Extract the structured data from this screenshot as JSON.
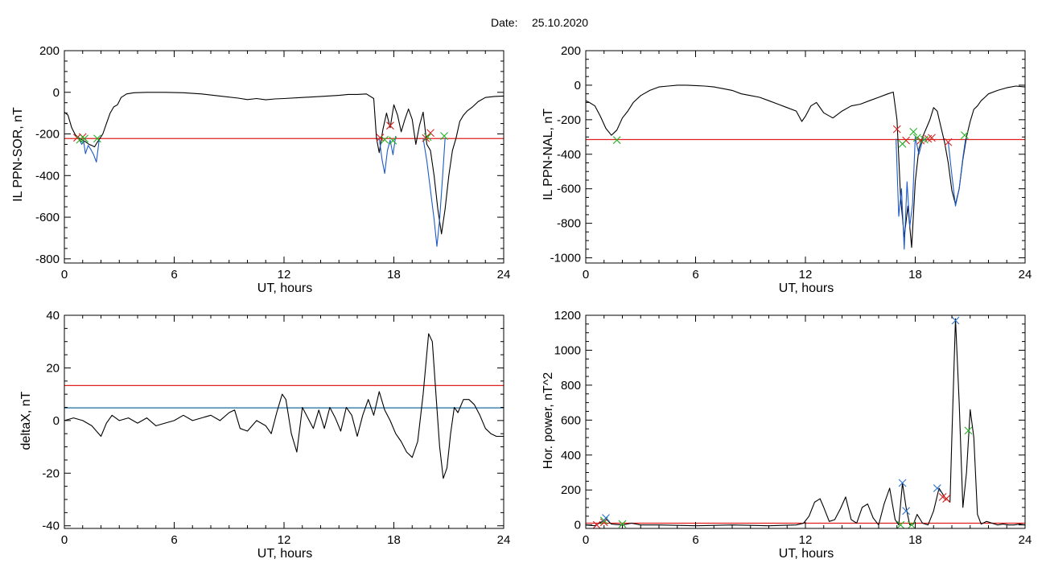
{
  "figure": {
    "date_label": "Date:",
    "date_value": "25.10.2020"
  },
  "chart_data": [
    {
      "id": "p1",
      "type": "line",
      "xlabel": "UT, hours",
      "ylabel": "IL PPN-SOR, nT",
      "xlim": [
        0,
        24
      ],
      "ylim": [
        -820,
        200
      ],
      "x_ticks": [
        0,
        6,
        12,
        18,
        24
      ],
      "y_ticks": [
        200,
        0,
        -200,
        -400,
        -600,
        -800
      ],
      "threshold_lines": [
        {
          "y": -222,
          "color": "#e0201e"
        }
      ],
      "series": [
        {
          "color": "#000000",
          "x": [
            0,
            0.2,
            0.4,
            0.6,
            0.8,
            1.0,
            1.2,
            1.35,
            1.5,
            1.65,
            1.8,
            1.95,
            2.1,
            2.3,
            2.5,
            2.7,
            2.9,
            3.1,
            3.4,
            3.8,
            4.5,
            5.5,
            6.5,
            7.5,
            8.5,
            9.5,
            10.0,
            10.5,
            11.0,
            11.5,
            12.0,
            13.0,
            14.0,
            15.0,
            15.5,
            16.0,
            16.5,
            16.9,
            17.05,
            17.2,
            17.4,
            17.6,
            17.8,
            18.0,
            18.2,
            18.4,
            18.6,
            18.8,
            19.0,
            19.2,
            19.4,
            19.6,
            19.8,
            20.0,
            20.2,
            20.4,
            20.6,
            20.8,
            21.0,
            21.2,
            21.4,
            21.6,
            21.8,
            22.0,
            22.3,
            22.6,
            23.0,
            23.5,
            24
          ],
          "y": [
            -95,
            -110,
            -170,
            -205,
            -220,
            -230,
            -240,
            -250,
            -255,
            -262,
            -240,
            -220,
            -200,
            -150,
            -100,
            -70,
            -60,
            -25,
            -8,
            -2,
            0,
            0,
            -2,
            -8,
            -18,
            -28,
            -35,
            -30,
            -36,
            -32,
            -30,
            -25,
            -20,
            -15,
            -10,
            -10,
            -8,
            -30,
            -220,
            -290,
            -180,
            -100,
            -170,
            -60,
            -110,
            -190,
            -130,
            -80,
            -130,
            -250,
            -160,
            -95,
            -250,
            -280,
            -400,
            -560,
            -680,
            -560,
            -400,
            -280,
            -220,
            -140,
            -110,
            -90,
            -70,
            -45,
            -25,
            -20,
            -18
          ]
        },
        {
          "color": "#1e5ac8",
          "x": [
            0.8,
            0.95,
            1.05,
            1.15,
            1.3,
            1.45,
            1.6,
            1.75,
            1.9
          ],
          "y": [
            -225,
            -250,
            -235,
            -295,
            -255,
            -275,
            -300,
            -335,
            -230
          ]
        },
        {
          "color": "#1e5ac8",
          "x": [
            17.2,
            17.35,
            17.5,
            17.65,
            17.8,
            17.95,
            18.1
          ],
          "y": [
            -220,
            -320,
            -390,
            -280,
            -230,
            -300,
            -210
          ]
        },
        {
          "color": "#1e5ac8",
          "x": [
            19.6,
            19.8,
            20.0,
            20.2,
            20.35,
            20.5,
            20.65,
            20.8
          ],
          "y": [
            -220,
            -330,
            -470,
            -610,
            -740,
            -610,
            -420,
            -220
          ]
        }
      ],
      "markers_red": {
        "x": [
          0.7,
          1.0,
          17.25,
          17.8,
          19.75,
          20.0
        ],
        "y": [
          -218,
          -215,
          -218,
          -160,
          -220,
          -195
        ]
      },
      "markers_green": {
        "x": [
          0.85,
          1.1,
          1.8,
          17.5,
          17.95,
          19.85,
          20.75
        ],
        "y": [
          -228,
          -222,
          -222,
          -228,
          -232,
          -215,
          -210
        ]
      }
    },
    {
      "id": "p2",
      "type": "line",
      "xlabel": "UT, hours",
      "ylabel": "IL PPN-NAL, nT",
      "xlim": [
        0,
        24
      ],
      "ylim": [
        -1030,
        200
      ],
      "x_ticks": [
        0,
        6,
        12,
        18,
        24
      ],
      "y_ticks": [
        200,
        0,
        -200,
        -400,
        -600,
        -800,
        -1000
      ],
      "threshold_lines": [
        {
          "y": -315,
          "color": "#e0201e"
        }
      ],
      "series": [
        {
          "color": "#000000",
          "x": [
            0,
            0.2,
            0.5,
            0.8,
            1.1,
            1.4,
            1.7,
            2.0,
            2.3,
            2.6,
            3.0,
            3.5,
            4.0,
            4.5,
            5.0,
            5.5,
            6.0,
            6.5,
            7.0,
            7.5,
            8.0,
            8.5,
            9.0,
            9.5,
            10.0,
            10.5,
            11.0,
            11.5,
            11.8,
            12.0,
            12.3,
            12.6,
            13.0,
            13.5,
            14.0,
            14.5,
            15.0,
            15.5,
            16.0,
            16.5,
            16.8,
            17.0,
            17.2,
            17.4,
            17.6,
            17.8,
            18.0,
            18.2,
            18.4,
            18.6,
            18.8,
            19.0,
            19.2,
            19.4,
            19.6,
            19.8,
            20.0,
            20.2,
            20.4,
            20.6,
            20.8,
            21.0,
            21.2,
            21.4,
            21.6,
            21.8,
            22.0,
            22.5,
            23.0,
            23.5,
            24
          ],
          "y": [
            -90,
            -100,
            -120,
            -180,
            -250,
            -290,
            -260,
            -190,
            -150,
            -100,
            -60,
            -30,
            -10,
            -5,
            0,
            0,
            -2,
            -5,
            -10,
            -20,
            -30,
            -50,
            -60,
            -70,
            -90,
            -110,
            -130,
            -150,
            -210,
            -180,
            -120,
            -100,
            -160,
            -190,
            -150,
            -120,
            -110,
            -90,
            -70,
            -50,
            -40,
            -200,
            -650,
            -880,
            -700,
            -940,
            -560,
            -370,
            -300,
            -250,
            -200,
            -130,
            -150,
            -240,
            -330,
            -450,
            -610,
            -690,
            -600,
            -430,
            -300,
            -210,
            -140,
            -120,
            -90,
            -70,
            -50,
            -30,
            -15,
            -5,
            -10
          ]
        },
        {
          "color": "#1e5ac8",
          "x": [
            16.95,
            17.1,
            17.25,
            17.4,
            17.55,
            17.7,
            17.85,
            18.0,
            18.2,
            18.4,
            18.6
          ],
          "y": [
            -310,
            -760,
            -600,
            -950,
            -560,
            -820,
            -690,
            -300,
            -400,
            -320,
            -310
          ]
        },
        {
          "color": "#1e5ac8",
          "x": [
            19.8,
            20.0,
            20.2,
            20.4,
            20.6,
            20.75
          ],
          "y": [
            -330,
            -520,
            -700,
            -600,
            -420,
            -310
          ]
        }
      ],
      "markers_red": {
        "x": [
          17.0,
          17.5,
          18.3,
          18.7,
          18.9,
          19.8
        ],
        "y": [
          -255,
          -320,
          -320,
          -310,
          -305,
          -330
        ]
      },
      "markers_green": {
        "x": [
          1.7,
          17.3,
          17.9,
          18.1,
          18.5,
          20.7
        ],
        "y": [
          -318,
          -340,
          -270,
          -305,
          -315,
          -290
        ]
      }
    },
    {
      "id": "p3",
      "type": "line",
      "xlabel": "UT, hours",
      "ylabel": "deltaX, nT",
      "xlim": [
        0,
        24
      ],
      "ylim": [
        -41,
        40
      ],
      "x_ticks": [
        0,
        6,
        12,
        18,
        24
      ],
      "y_ticks": [
        40,
        20,
        0,
        -20,
        -40
      ],
      "threshold_lines": [
        {
          "y": 13.3,
          "color": "#e0201e"
        },
        {
          "y": 4.8,
          "color": "#1a6e9e"
        }
      ],
      "series": [
        {
          "color": "#000000",
          "x": [
            0,
            0.5,
            1.0,
            1.5,
            2.0,
            2.3,
            2.6,
            3.0,
            3.5,
            4.0,
            4.5,
            5.0,
            5.5,
            6.0,
            6.5,
            7.0,
            7.5,
            8.0,
            8.5,
            9.0,
            9.3,
            9.6,
            10.0,
            10.5,
            11.0,
            11.3,
            11.6,
            11.9,
            12.1,
            12.4,
            12.7,
            13.0,
            13.3,
            13.6,
            13.9,
            14.2,
            14.5,
            14.8,
            15.1,
            15.4,
            15.7,
            16.0,
            16.3,
            16.6,
            16.9,
            17.2,
            17.5,
            17.8,
            18.1,
            18.4,
            18.7,
            19.0,
            19.3,
            19.6,
            19.9,
            20.1,
            20.3,
            20.5,
            20.7,
            20.9,
            21.1,
            21.3,
            21.5,
            21.8,
            22.1,
            22.4,
            22.7,
            23.0,
            23.3,
            23.6,
            24
          ],
          "y": [
            0,
            1,
            0,
            -2,
            -6,
            -1,
            2,
            0,
            1,
            -1,
            1,
            -2,
            -1,
            0,
            2,
            0,
            1,
            2,
            0,
            3,
            4,
            -3,
            -4,
            0,
            -2,
            -5,
            3,
            10,
            8,
            -5,
            -12,
            5,
            1,
            -3,
            4,
            -3,
            5,
            1,
            -4,
            5,
            2,
            -6,
            2,
            8,
            2,
            11,
            4,
            0,
            -5,
            -8,
            -12,
            -14,
            -8,
            10,
            33,
            30,
            10,
            -10,
            -22,
            -18,
            -5,
            5,
            3,
            8,
            8,
            6,
            2,
            -3,
            -5,
            -6,
            -6
          ]
        }
      ]
    },
    {
      "id": "p4",
      "type": "line",
      "xlabel": "UT, hours",
      "ylabel": "Hor. power, nT^2",
      "xlim": [
        0,
        24
      ],
      "ylim": [
        -20,
        1200
      ],
      "x_ticks": [
        0,
        6,
        12,
        18,
        24
      ],
      "y_ticks": [
        1200,
        1000,
        800,
        600,
        400,
        200,
        0
      ],
      "threshold_lines": [
        {
          "y": 10,
          "color": "#e0201e"
        }
      ],
      "series": [
        {
          "color": "#000000",
          "x": [
            0,
            0.5,
            0.9,
            1.1,
            1.4,
            2.0,
            2.5,
            3.0,
            4.0,
            6.0,
            8.0,
            10.0,
            11.5,
            11.9,
            12.2,
            12.5,
            12.8,
            13.0,
            13.3,
            13.6,
            13.9,
            14.2,
            14.5,
            14.8,
            15.1,
            15.4,
            15.7,
            16.0,
            16.3,
            16.6,
            16.9,
            17.1,
            17.3,
            17.5,
            17.7,
            17.9,
            18.1,
            18.4,
            18.7,
            19.0,
            19.3,
            19.6,
            19.9,
            20.0,
            20.2,
            20.4,
            20.6,
            20.8,
            21.0,
            21.2,
            21.4,
            21.6,
            21.9,
            22.2,
            22.5,
            22.8,
            23.1,
            23.4,
            23.7,
            24
          ],
          "y": [
            0,
            -5,
            20,
            35,
            5,
            0,
            10,
            0,
            0,
            -5,
            0,
            -5,
            0,
            10,
            50,
            130,
            150,
            100,
            20,
            30,
            90,
            160,
            30,
            10,
            100,
            120,
            40,
            0,
            120,
            210,
            30,
            0,
            240,
            100,
            0,
            5,
            60,
            10,
            0,
            80,
            210,
            160,
            130,
            500,
            1180,
            700,
            100,
            300,
            660,
            500,
            60,
            5,
            20,
            10,
            0,
            5,
            0,
            0,
            5,
            0
          ]
        }
      ],
      "markers_red": {
        "x": [
          0.6,
          1.0,
          19.5,
          19.7
        ],
        "y": [
          0,
          15,
          160,
          150
        ]
      },
      "markers_green": {
        "x": [
          1.0,
          2.0,
          17.2,
          17.8,
          20.9
        ],
        "y": [
          25,
          5,
          0,
          0,
          540
        ]
      },
      "markers_blue": {
        "x": [
          1.1,
          17.3,
          17.5,
          19.2,
          20.2
        ],
        "y": [
          40,
          240,
          80,
          210,
          1170
        ]
      }
    }
  ]
}
